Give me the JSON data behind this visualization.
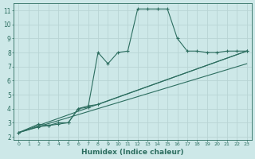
{
  "xlabel": "Humidex (Indice chaleur)",
  "background_color": "#cde8e8",
  "grid_color": "#b8d4d4",
  "line_color": "#2d6e60",
  "xlim": [
    -0.5,
    23.5
  ],
  "ylim": [
    1.8,
    11.5
  ],
  "xticks": [
    0,
    1,
    2,
    3,
    4,
    5,
    6,
    7,
    8,
    9,
    10,
    11,
    12,
    13,
    14,
    15,
    16,
    17,
    18,
    19,
    20,
    21,
    22,
    23
  ],
  "yticks": [
    2,
    3,
    4,
    5,
    6,
    7,
    8,
    9,
    10,
    11
  ],
  "line1_x": [
    0,
    2,
    3,
    4,
    5,
    6,
    7,
    8,
    9,
    10,
    11,
    12,
    13,
    14,
    15,
    16,
    17,
    18,
    19,
    20,
    21,
    22,
    23
  ],
  "line1_y": [
    2.3,
    2.9,
    2.8,
    3.0,
    3.0,
    4.0,
    4.1,
    8.0,
    7.2,
    8.0,
    8.1,
    11.1,
    11.1,
    11.1,
    11.1,
    9.0,
    8.1,
    8.1,
    8.0,
    8.0,
    8.1,
    8.1,
    8.1
  ],
  "line2_x": [
    0,
    2,
    3,
    4,
    5,
    6,
    7,
    8,
    23
  ],
  "line2_y": [
    2.3,
    2.7,
    2.8,
    2.9,
    3.0,
    4.0,
    4.2,
    4.3,
    8.1
  ],
  "line3_x": [
    0,
    23
  ],
  "line3_y": [
    2.3,
    8.1
  ],
  "line4_x": [
    0,
    23
  ],
  "line4_y": [
    2.3,
    7.2
  ]
}
